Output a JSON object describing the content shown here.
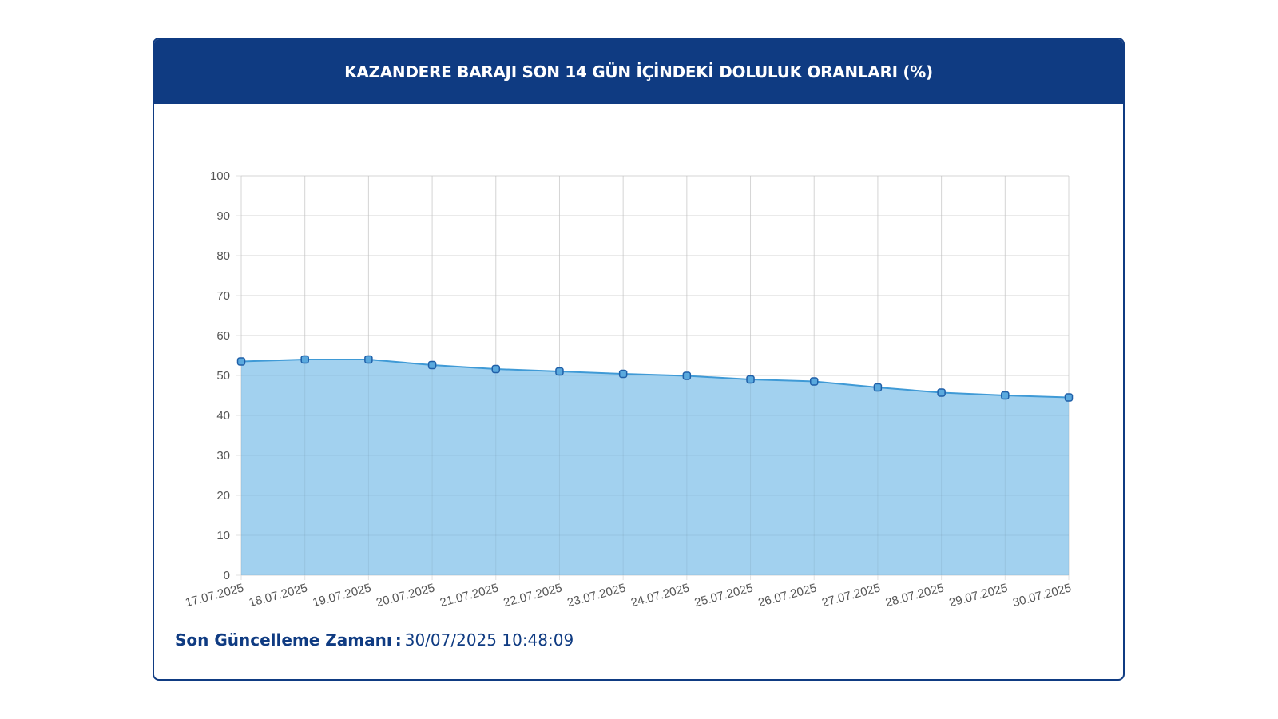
{
  "card": {
    "title": "KAZANDERE BARAJI SON 14 GÜN İÇİNDEKİ DOLULUK ORANLARI (%)"
  },
  "footer": {
    "label": "Son Güncelleme Zamanı",
    "separator": ":",
    "value": "30/07/2025 10:48:09"
  },
  "colors": {
    "header_bg": "#0f3b82",
    "area_fill": "#9dcfee",
    "line": "#3f9ad6",
    "point_stroke": "#1f5fa8"
  },
  "chart_data": {
    "type": "area",
    "title": "KAZANDERE BARAJI SON 14 GÜN İÇİNDEKİ DOLULUK ORANLARI (%)",
    "categories": [
      "17.07.2025",
      "18.07.2025",
      "19.07.2025",
      "20.07.2025",
      "21.07.2025",
      "22.07.2025",
      "23.07.2025",
      "24.07.2025",
      "25.07.2025",
      "26.07.2025",
      "27.07.2025",
      "28.07.2025",
      "29.07.2025",
      "30.07.2025"
    ],
    "series": [
      {
        "values": [
          53.5,
          54.0,
          54.0,
          52.6,
          51.6,
          51.0,
          50.4,
          49.9,
          49.0,
          48.5,
          47.0,
          45.7,
          45.0,
          44.5
        ]
      }
    ],
    "yticks": [
      0,
      10,
      20,
      30,
      40,
      50,
      60,
      70,
      80,
      90,
      100
    ],
    "ylim": [
      0,
      100
    ],
    "grid": true,
    "legend": "none"
  }
}
